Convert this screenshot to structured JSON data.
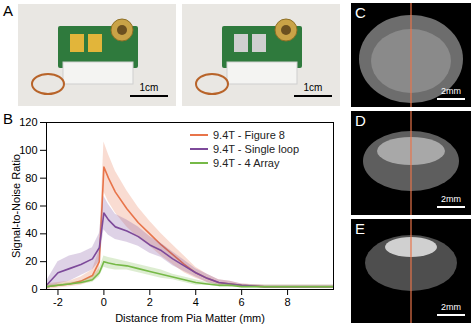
{
  "panels": [
    {
      "letter": "A",
      "scale_bars": [
        "1cm",
        "1cm"
      ]
    },
    {
      "letter": "B"
    },
    {
      "letter": "C",
      "scale_bar": "2mm"
    },
    {
      "letter": "D",
      "scale_bar": "2mm"
    },
    {
      "letter": "E",
      "scale_bar": "2mm"
    }
  ],
  "chart_data": {
    "type": "line",
    "x_label": "Distance from Pia Matter (mm)",
    "y_label": "Signal-to-Noise Ratio",
    "x": [
      -2.5,
      -2,
      -1.5,
      -1,
      -0.5,
      -0.2,
      0,
      0.2,
      0.5,
      1,
      1.5,
      2,
      2.5,
      3,
      3.5,
      4,
      4.5,
      5,
      5.5,
      6,
      7,
      8,
      9,
      10
    ],
    "series": [
      {
        "name": "9.4T - Figure 8",
        "color": "#e8744a",
        "values": [
          2,
          3,
          4,
          6,
          10,
          20,
          88,
          80,
          70,
          58,
          48,
          40,
          32,
          25,
          18,
          12,
          8,
          5,
          4,
          3,
          2,
          2,
          2,
          2
        ],
        "error": [
          2,
          2,
          2,
          3,
          4,
          8,
          18,
          17,
          15,
          13,
          11,
          9,
          8,
          7,
          6,
          4,
          3,
          2,
          2,
          1,
          1,
          1,
          1,
          1
        ]
      },
      {
        "name": "9.4T - Single loop",
        "color": "#7d4a9a",
        "values": [
          3,
          12,
          15,
          18,
          22,
          30,
          55,
          50,
          45,
          42,
          38,
          32,
          28,
          22,
          17,
          12,
          8,
          5,
          4,
          3,
          2,
          2,
          2,
          2
        ],
        "error": [
          3,
          8,
          9,
          8,
          8,
          10,
          12,
          11,
          9,
          8,
          7,
          6,
          5,
          5,
          4,
          3,
          3,
          2,
          2,
          1,
          1,
          1,
          1,
          1
        ]
      },
      {
        "name": "9.4T - 4 Array",
        "color": "#76b947",
        "values": [
          2,
          3,
          4,
          5,
          7,
          12,
          20,
          19,
          18,
          17,
          15,
          13,
          11,
          9,
          7,
          5,
          4,
          3,
          3,
          2,
          2,
          2,
          2,
          2
        ],
        "error": [
          1,
          1,
          1,
          1,
          2,
          3,
          4,
          4,
          4,
          3,
          3,
          3,
          3,
          2,
          2,
          2,
          1,
          1,
          1,
          1,
          1,
          1,
          1,
          1
        ]
      }
    ],
    "xlim": [
      -2.5,
      10
    ],
    "xticks": [
      -2,
      0,
      2,
      4,
      6,
      8
    ],
    "ylim": [
      0,
      120
    ],
    "yticks": [
      0,
      20,
      40,
      60,
      80,
      100,
      120
    ],
    "grid": false,
    "legend": "top-right"
  }
}
